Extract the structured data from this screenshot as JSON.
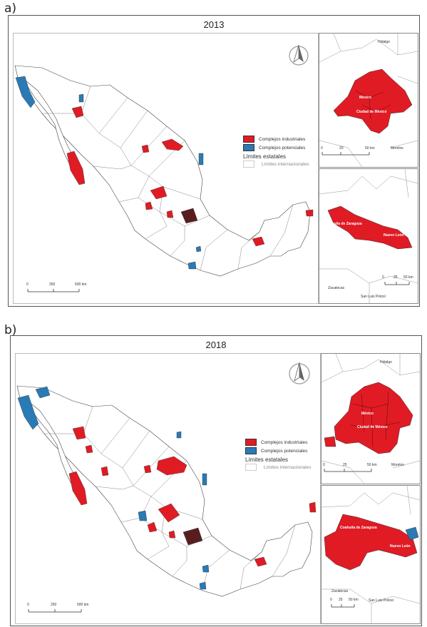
{
  "colors": {
    "industrial": "#e01b24",
    "potential": "#2a7ab5",
    "border": "#333333"
  },
  "panel_a": {
    "letter": "a)",
    "year": "2013",
    "legend": {
      "industrial": "Complejos industriales",
      "potential": "Complejos potenciales",
      "states": "Límites estatales",
      "international": "Límites internacionales"
    },
    "scale": {
      "t0": "0",
      "t1": "250",
      "t2": "500 km"
    },
    "inset_top": {
      "labels": {
        "hidalgo": "Hidalgo",
        "mexico": "México",
        "cdmx": "Ciudad de México",
        "morelos": "Morelos"
      },
      "scale": {
        "t0": "0",
        "t1": "20",
        "t2": "50 km"
      }
    },
    "inset_bottom": {
      "labels": {
        "zac": "Zacatecas",
        "slp": "San Luis Potosí",
        "nl": "Nuevo León",
        "coah": "Coahuila de Zaragoza"
      },
      "scale": {
        "t0": "0",
        "t1": "25",
        "t2": "50 km"
      }
    }
  },
  "panel_b": {
    "letter": "b)",
    "year": "2018",
    "legend": {
      "industrial": "Complejos industriales",
      "potential": "Complejos potenciales",
      "states": "Límites estatales",
      "international": "Límites internacionales"
    },
    "scale": {
      "t0": "0",
      "t1": "250",
      "t2": "500 km"
    },
    "inset_top": {
      "labels": {
        "hidalgo": "Hidalgo",
        "mexico": "México",
        "cdmx": "Ciudad de México",
        "morelos": "Morelos"
      },
      "scale": {
        "t0": "0",
        "t1": "25",
        "t2": "50 km"
      }
    },
    "inset_bottom": {
      "labels": {
        "zac": "Zacatecas",
        "slp": "San Luis Potosí",
        "nl": "Nuevo León",
        "coah": "Coahuila de Zaragoza"
      },
      "scale": {
        "t0": "0",
        "t1": "25",
        "t2": "50 km"
      }
    }
  }
}
